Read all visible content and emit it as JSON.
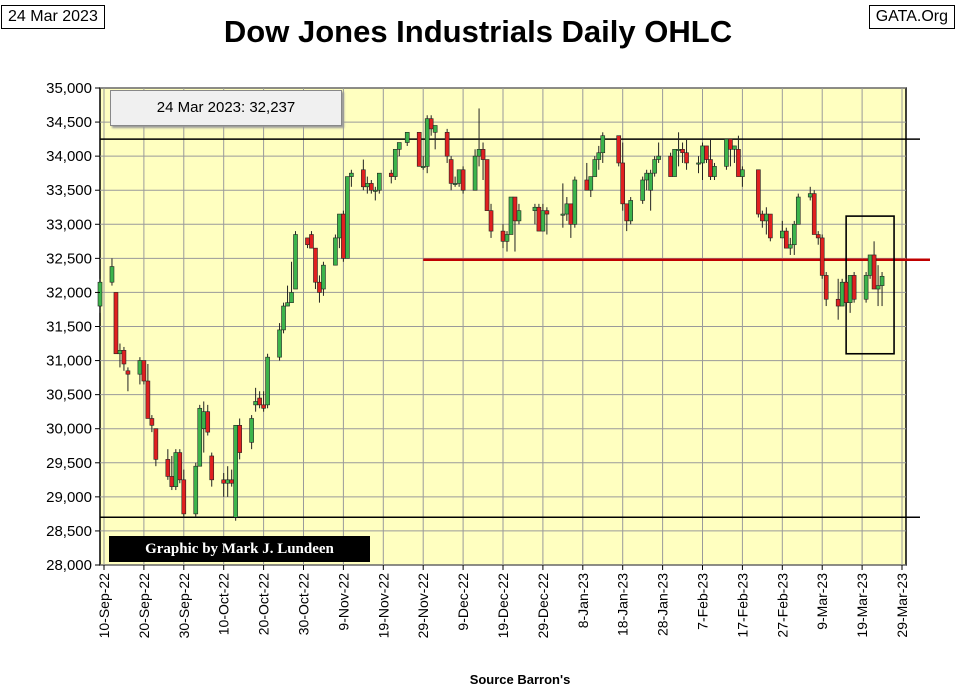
{
  "header": {
    "date_stamp": "24 Mar 2023",
    "site_stamp": "GATA.Org",
    "title": "Dow Jones Industrials Daily OHLC"
  },
  "value_box": "24 Mar 2023:  32,237",
  "credit": "Graphic by Mark J. Lundeen",
  "source": "Source Barron's",
  "colors": {
    "plot_bg": "#ffffc0",
    "up": "#3cb44b",
    "down": "#e02020",
    "level_line": "#c00000"
  },
  "chart_data": {
    "type": "ohlc-candlestick",
    "title": "Dow Jones Industrials Daily OHLC",
    "xlabel": "Source Barron's",
    "ylabel": "",
    "ylim": [
      28000,
      35000
    ],
    "y_ticks": [
      "28,000",
      "28,500",
      "29,000",
      "29,500",
      "30,000",
      "30,500",
      "31,000",
      "31,500",
      "32,000",
      "32,500",
      "33,000",
      "33,500",
      "34,000",
      "34,500",
      "35,000"
    ],
    "x_ticks": [
      "10-Sep-22",
      "20-Sep-22",
      "30-Sep-22",
      "10-Oct-22",
      "20-Oct-22",
      "30-Oct-22",
      "9-Nov-22",
      "19-Nov-22",
      "29-Nov-22",
      "9-Dec-22",
      "19-Dec-22",
      "29-Dec-22",
      "8-Jan-23",
      "18-Jan-23",
      "28-Jan-23",
      "7-Feb-23",
      "17-Feb-23",
      "27-Feb-23",
      "9-Mar-23",
      "19-Mar-23",
      "29-Mar-23"
    ],
    "x_start": "9-Sep-22",
    "x_end": "30-Mar-23",
    "grid": true,
    "horizontal_lines": [
      34250,
      28700
    ],
    "resistance_line": {
      "value": 32480,
      "from": "29-Nov-22",
      "to": "30-Mar-23"
    },
    "highlight_box": {
      "from": "17-Mar-23",
      "to": "24-Mar-23",
      "low": 31100,
      "high": 33120
    },
    "candles": [
      [
        "9-Sep-22",
        31800,
        32200,
        31700,
        32150
      ],
      [
        "12-Sep-22",
        32150,
        32500,
        32100,
        32380
      ],
      [
        "13-Sep-22",
        32000,
        32000,
        31100,
        31100
      ],
      [
        "14-Sep-22",
        31100,
        31250,
        30900,
        31150
      ],
      [
        "15-Sep-22",
        31150,
        31200,
        30850,
        30950
      ],
      [
        "16-Sep-22",
        30850,
        30900,
        30550,
        30800
      ],
      [
        "19-Sep-22",
        30800,
        31050,
        30650,
        31000
      ],
      [
        "20-Sep-22",
        31000,
        31000,
        30650,
        30700
      ],
      [
        "21-Sep-22",
        30700,
        30950,
        30150,
        30150
      ],
      [
        "22-Sep-22",
        30150,
        30200,
        29950,
        30050
      ],
      [
        "23-Sep-22",
        30000,
        30000,
        29450,
        29550
      ],
      [
        "26-Sep-22",
        29550,
        29700,
        29250,
        29300
      ],
      [
        "27-Sep-22",
        29300,
        29600,
        29100,
        29150
      ],
      [
        "28-Sep-22",
        29150,
        29700,
        29100,
        29650
      ],
      [
        "29-Sep-22",
        29650,
        29700,
        29200,
        29250
      ],
      [
        "30-Sep-22",
        29250,
        29400,
        28700,
        28750
      ],
      [
        "3-Oct-22",
        28750,
        29500,
        28700,
        29450
      ],
      [
        "4-Oct-22",
        29450,
        30350,
        29450,
        30300
      ],
      [
        "5-Oct-22",
        30000,
        30400,
        29650,
        30250
      ],
      [
        "6-Oct-22",
        30250,
        30350,
        29900,
        29950
      ],
      [
        "7-Oct-22",
        29600,
        29650,
        29150,
        29250
      ],
      [
        "10-Oct-22",
        29250,
        29350,
        29000,
        29200
      ],
      [
        "11-Oct-22",
        29200,
        29450,
        29000,
        29250
      ],
      [
        "12-Oct-22",
        29250,
        29400,
        29150,
        29200
      ],
      [
        "13-Oct-22",
        28700,
        30050,
        28650,
        30050
      ],
      [
        "14-Oct-22",
        30050,
        30150,
        29550,
        29650
      ],
      [
        "17-Oct-22",
        29800,
        30200,
        29700,
        30150
      ],
      [
        "18-Oct-22",
        30350,
        30600,
        30250,
        30400
      ],
      [
        "19-Oct-22",
        30450,
        30550,
        30300,
        30350
      ],
      [
        "20-Oct-22",
        30350,
        30550,
        30250,
        30300
      ],
      [
        "21-Oct-22",
        30350,
        31100,
        30300,
        31050
      ],
      [
        "24-Oct-22",
        31050,
        31550,
        31000,
        31450
      ],
      [
        "25-Oct-22",
        31450,
        31850,
        31400,
        31800
      ],
      [
        "26-Oct-22",
        31800,
        32100,
        31800,
        31850
      ],
      [
        "27-Oct-22",
        31850,
        32450,
        31850,
        32000
      ],
      [
        "28-Oct-22",
        32050,
        32900,
        32050,
        32850
      ],
      [
        "31-Oct-22",
        32800,
        32800,
        32650,
        32700
      ],
      [
        "1-Nov-22",
        32850,
        32900,
        32650,
        32650
      ],
      [
        "2-Nov-22",
        32650,
        32650,
        32050,
        32150
      ],
      [
        "3-Nov-22",
        32150,
        32250,
        31850,
        32000
      ],
      [
        "4-Nov-22",
        32050,
        32450,
        31950,
        32400
      ],
      [
        "7-Nov-22",
        32400,
        32850,
        32400,
        32800
      ],
      [
        "8-Nov-22",
        32800,
        33100,
        32650,
        33150
      ],
      [
        "9-Nov-22",
        33150,
        33200,
        32450,
        32500
      ],
      [
        "10-Nov-22",
        32500,
        33700,
        32500,
        33700
      ],
      [
        "11-Nov-22",
        33700,
        33800,
        33550,
        33750
      ],
      [
        "14-Nov-22",
        33800,
        33950,
        33500,
        33550
      ],
      [
        "15-Nov-22",
        33550,
        33700,
        33450,
        33600
      ],
      [
        "16-Nov-22",
        33600,
        33650,
        33450,
        33500
      ],
      [
        "17-Nov-22",
        33500,
        33550,
        33350,
        33500
      ],
      [
        "18-Nov-22",
        33500,
        33750,
        33450,
        33750
      ],
      [
        "21-Nov-22",
        33750,
        33800,
        33600,
        33700
      ],
      [
        "22-Nov-22",
        33700,
        34100,
        33650,
        34100
      ],
      [
        "23-Nov-22",
        34100,
        34200,
        34000,
        34200
      ],
      [
        "25-Nov-22",
        34200,
        34350,
        34150,
        34350
      ],
      [
        "28-Nov-22",
        34350,
        34350,
        33850,
        33850
      ],
      [
        "29-Nov-22",
        33850,
        34000,
        33800,
        33850
      ],
      [
        "30-Nov-22",
        33850,
        34600,
        33750,
        34550
      ],
      [
        "1-Dec-22",
        34550,
        34600,
        34300,
        34400
      ],
      [
        "2-Dec-22",
        34350,
        34450,
        34100,
        34450
      ],
      [
        "5-Dec-22",
        34350,
        34400,
        33900,
        34000
      ],
      [
        "6-Dec-22",
        33950,
        34000,
        33500,
        33600
      ],
      [
        "7-Dec-22",
        33600,
        33700,
        33550,
        33600
      ],
      [
        "8-Dec-22",
        33600,
        33800,
        33550,
        33800
      ],
      [
        "9-Dec-22",
        33800,
        33850,
        33450,
        33500
      ],
      [
        "12-Dec-22",
        33500,
        34100,
        33500,
        34000
      ],
      [
        "13-Dec-22",
        34000,
        34700,
        33850,
        34100
      ],
      [
        "14-Dec-22",
        34100,
        34200,
        33650,
        33950
      ],
      [
        "15-Dec-22",
        33950,
        33950,
        33200,
        33200
      ],
      [
        "16-Dec-22",
        33200,
        33300,
        32800,
        32900
      ],
      [
        "19-Dec-22",
        32900,
        33000,
        32650,
        32750
      ],
      [
        "20-Dec-22",
        32750,
        32900,
        32600,
        32850
      ],
      [
        "21-Dec-22",
        32850,
        33400,
        32850,
        33400
      ],
      [
        "22-Dec-22",
        33400,
        33400,
        32600,
        33050
      ],
      [
        "23-Dec-22",
        33050,
        33300,
        33000,
        33200
      ],
      [
        "27-Dec-22",
        33200,
        33300,
        33000,
        33250
      ],
      [
        "28-Dec-22",
        33250,
        33300,
        32900,
        32900
      ],
      [
        "29-Dec-22",
        32900,
        33300,
        32900,
        33200
      ],
      [
        "30-Dec-22",
        33200,
        33250,
        32850,
        33150
      ],
      [
        "3-Jan-23",
        33150,
        33600,
        32950,
        33150
      ],
      [
        "4-Jan-23",
        33150,
        33400,
        33050,
        33300
      ],
      [
        "5-Jan-23",
        33300,
        33300,
        32800,
        33000
      ],
      [
        "6-Jan-23",
        33000,
        33700,
        32950,
        33650
      ],
      [
        "9-Jan-23",
        33650,
        33900,
        33500,
        33500
      ],
      [
        "10-Jan-23",
        33500,
        33700,
        33400,
        33700
      ],
      [
        "11-Jan-23",
        33700,
        34000,
        33700,
        33950
      ],
      [
        "12-Jan-23",
        33950,
        34150,
        33800,
        34050
      ],
      [
        "13-Jan-23",
        34050,
        34350,
        33900,
        34300
      ],
      [
        "17-Jan-23",
        34300,
        34300,
        33850,
        33900
      ],
      [
        "18-Jan-23",
        33900,
        34200,
        33200,
        33300
      ],
      [
        "19-Jan-23",
        33300,
        33300,
        32900,
        33050
      ],
      [
        "20-Jan-23",
        33050,
        33400,
        33000,
        33350
      ],
      [
        "23-Jan-23",
        33350,
        33700,
        33300,
        33650
      ],
      [
        "24-Jan-23",
        33650,
        33800,
        33500,
        33750
      ],
      [
        "25-Jan-23",
        33500,
        33800,
        33200,
        33750
      ],
      [
        "26-Jan-23",
        33750,
        34000,
        33700,
        33950
      ],
      [
        "27-Jan-23",
        33950,
        34200,
        33900,
        34000
      ],
      [
        "30-Jan-23",
        34000,
        34050,
        33700,
        33700
      ],
      [
        "31-Jan-23",
        33700,
        34100,
        33700,
        34100
      ],
      [
        "1-Feb-23",
        34100,
        34350,
        33850,
        34100
      ],
      [
        "2-Feb-23",
        34100,
        34200,
        33900,
        34050
      ],
      [
        "3-Feb-23",
        34050,
        34250,
        33800,
        33900
      ],
      [
        "6-Feb-23",
        33900,
        34000,
        33750,
        33900
      ],
      [
        "7-Feb-23",
        33900,
        34200,
        33650,
        34150
      ],
      [
        "8-Feb-23",
        34150,
        34150,
        33900,
        33950
      ],
      [
        "9-Feb-23",
        33950,
        34250,
        33650,
        33700
      ],
      [
        "10-Feb-23",
        33700,
        33900,
        33650,
        33850
      ],
      [
        "13-Feb-23",
        33850,
        34250,
        33800,
        34250
      ],
      [
        "14-Feb-23",
        34250,
        34250,
        33850,
        34100
      ],
      [
        "15-Feb-23",
        34100,
        34150,
        33900,
        34150
      ],
      [
        "16-Feb-23",
        34100,
        34300,
        33700,
        33700
      ],
      [
        "17-Feb-23",
        33700,
        33850,
        33550,
        33800
      ],
      [
        "21-Feb-23",
        33800,
        33800,
        33100,
        33150
      ],
      [
        "22-Feb-23",
        33150,
        33200,
        32950,
        33050
      ],
      [
        "23-Feb-23",
        33050,
        33250,
        32850,
        33150
      ],
      [
        "24-Feb-23",
        33150,
        33150,
        32750,
        32800
      ],
      [
        "27-Feb-23",
        32800,
        33050,
        32800,
        32900
      ],
      [
        "28-Feb-23",
        32900,
        32950,
        32650,
        32650
      ],
      [
        "1-Mar-23",
        32650,
        32800,
        32550,
        32700
      ],
      [
        "2-Mar-23",
        32700,
        33050,
        32550,
        33000
      ],
      [
        "3-Mar-23",
        33000,
        33450,
        33000,
        33400
      ],
      [
        "6-Mar-23",
        33400,
        33550,
        33350,
        33450
      ],
      [
        "7-Mar-23",
        33450,
        33500,
        32850,
        32850
      ],
      [
        "8-Mar-23",
        32850,
        32900,
        32700,
        32800
      ],
      [
        "9-Mar-23",
        32800,
        32850,
        32200,
        32250
      ],
      [
        "10-Mar-23",
        32250,
        32300,
        31800,
        31900
      ],
      [
        "13-Mar-23",
        31900,
        32200,
        31600,
        31800
      ],
      [
        "14-Mar-23",
        31800,
        32200,
        31800,
        32150
      ],
      [
        "15-Mar-23",
        32150,
        32200,
        31450,
        31850
      ],
      [
        "16-Mar-23",
        31850,
        32200,
        31700,
        32250
      ],
      [
        "17-Mar-23",
        32250,
        32300,
        31850,
        31900
      ],
      [
        "20-Mar-23",
        31900,
        32300,
        31850,
        32250
      ],
      [
        "21-Mar-23",
        32250,
        32550,
        32200,
        32550
      ],
      [
        "22-Mar-23",
        32550,
        32750,
        32050,
        32050
      ],
      [
        "23-Mar-23",
        32050,
        32400,
        31800,
        32100
      ],
      [
        "24-Mar-23",
        32100,
        32300,
        31800,
        32237
      ]
    ]
  }
}
